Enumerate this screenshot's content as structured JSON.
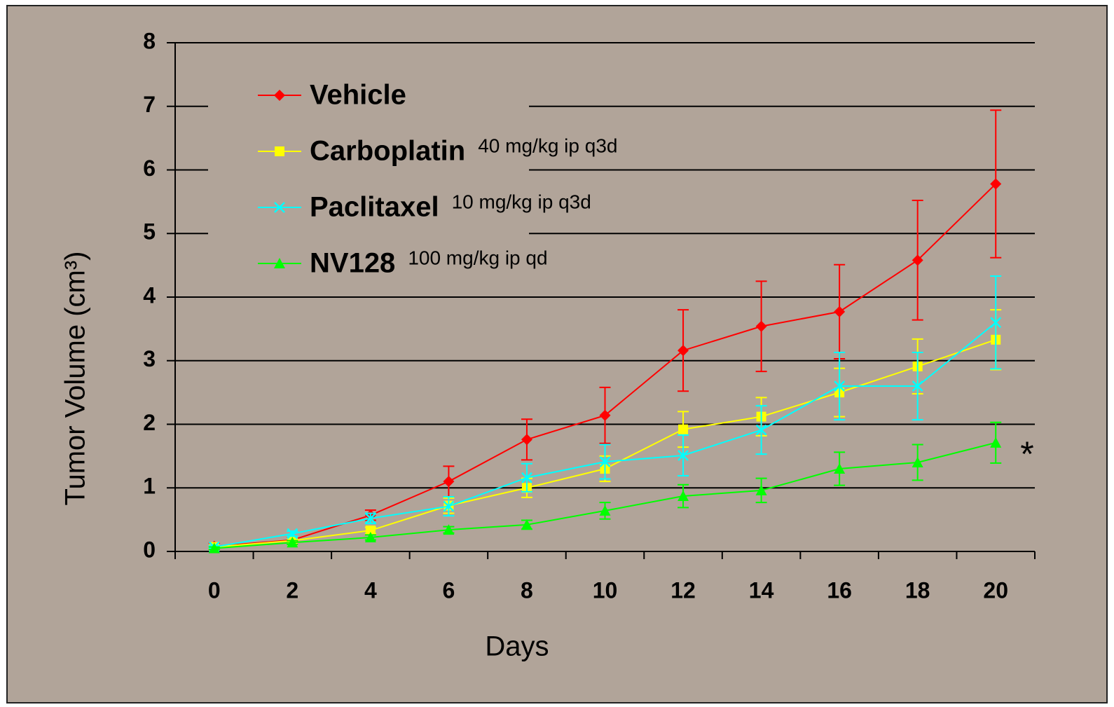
{
  "chart_data": {
    "type": "line",
    "xlabel": "Days",
    "ylabel": "Tumor Volume (cm³)",
    "categories": [
      "0",
      "2",
      "4",
      "6",
      "8",
      "10",
      "12",
      "14",
      "16",
      "18",
      "20"
    ],
    "ylim": [
      0,
      8
    ],
    "yticks": [
      0,
      1,
      2,
      3,
      4,
      5,
      6,
      7,
      8
    ],
    "grid": true,
    "annotation": "*",
    "series": [
      {
        "name": "Vehicle",
        "dose": "",
        "color": "#ff0000",
        "marker": "diamond",
        "values": [
          0.08,
          0.18,
          0.57,
          1.1,
          1.76,
          2.14,
          3.16,
          3.54,
          3.77,
          4.58,
          5.78
        ],
        "errors": [
          0.05,
          0.03,
          0.08,
          0.24,
          0.32,
          0.44,
          0.64,
          0.71,
          0.74,
          0.94,
          1.16
        ]
      },
      {
        "name": "Carboplatin",
        "dose": "40 mg/kg ip q3d",
        "color": "#ffff00",
        "marker": "square",
        "values": [
          0.07,
          0.17,
          0.33,
          0.72,
          1.0,
          1.3,
          1.92,
          2.12,
          2.5,
          2.91,
          3.33
        ],
        "errors": [
          0.02,
          0.03,
          0.05,
          0.12,
          0.15,
          0.2,
          0.28,
          0.3,
          0.38,
          0.43,
          0.47
        ]
      },
      {
        "name": "Paclitaxel",
        "dose": "10 mg/kg ip q3d",
        "color": "#00ffff",
        "marker": "x",
        "values": [
          0.07,
          0.28,
          0.52,
          0.71,
          1.16,
          1.41,
          1.51,
          1.91,
          2.6,
          2.6,
          3.6
        ],
        "errors": [
          0.02,
          0.04,
          0.08,
          0.15,
          0.22,
          0.27,
          0.32,
          0.38,
          0.53,
          0.53,
          0.73
        ]
      },
      {
        "name": "NV128",
        "dose": "100 mg/kg ip qd",
        "color": "#00ff00",
        "marker": "triangle",
        "values": [
          0.05,
          0.14,
          0.22,
          0.34,
          0.42,
          0.64,
          0.87,
          0.96,
          1.3,
          1.4,
          1.71
        ],
        "errors": [
          0.02,
          0.03,
          0.04,
          0.05,
          0.07,
          0.13,
          0.18,
          0.19,
          0.26,
          0.28,
          0.32
        ]
      }
    ]
  }
}
